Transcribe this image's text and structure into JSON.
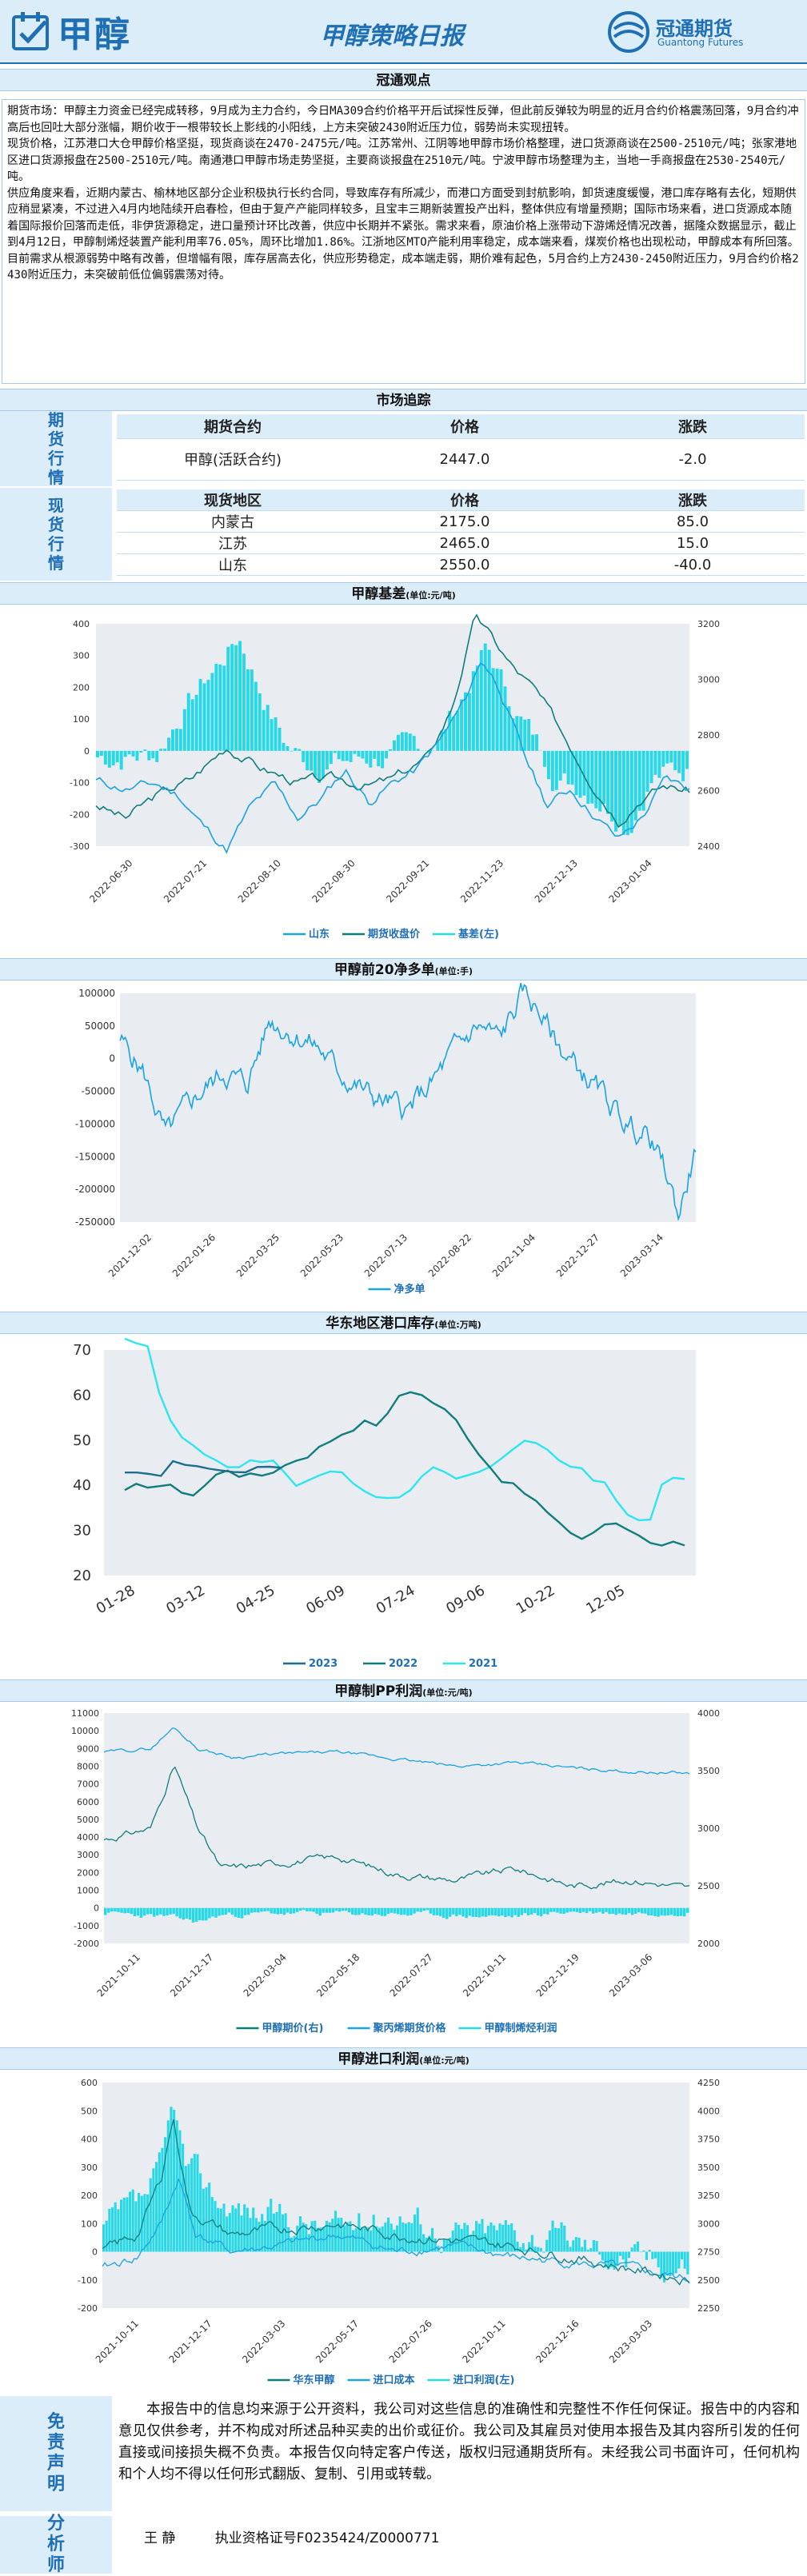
{
  "header": {
    "logo_text": "甲醇",
    "title": "甲醇策略日报",
    "brand_cn": "冠通期货",
    "brand_en": "Guantong Futures"
  },
  "viewpoint": {
    "title": "冠通观点",
    "paragraphs": [
      "期货市场：甲醇主力资金已经完成转移，9月成为主力合约，今日MA309合约价格平开后试探性反弹，但此前反弹较为明显的近月合约价格震荡回落，9月合约冲高后也回吐大部分涨幅，期价收于一根带较长上影线的小阳线，上方未突破2430附近压力位，弱势尚未实现扭转。",
      "现货价格，江苏港口大仓甲醇价格坚挺，现货商谈在2470-2475元/吨。江苏常州、江阴等地甲醇市场价格整理，进口货源商谈在2500-2510元/吨；张家港地区进口货源报盘在2500-2510元/吨。南通港口甲醇市场走势坚挺，主要商谈报盘在2510元/吨。宁波甲醇市场整理为主，当地一手商报盘在2530-2540元/吨。",
      "供应角度来看，近期内蒙古、榆林地区部分企业积极执行长约合同，导致库存有所减少，而港口方面受到封航影响，卸货速度缓慢，港口库存略有去化，短期供应稍显紧凑，不过进入4月内地陆续开启春检，但由于复产产能同样较多，且宝丰三期新装置投产出料，整体供应有增量预期；国际市场来看，进口货源成本随着国际报价回落而走低，非伊货源稳定，进口量预计环比改善，供应中长期并不紧张。需求来看，原油价格上涨带动下游烯烃情况改善，据隆众数据显示，截止到4月12日，甲醇制烯烃装置产能利用率76.05%，周环比增加1.86%。江浙地区MTO产能利用率稳定，成本端来看，煤炭价格也出现松动，甲醇成本有所回落。目前需求从根源弱势中略有改善，但增幅有限，库存居高去化，供应形势稳定，成本端走弱，期价难有起色，5月合约上方2430-2450附近压力，9月合约价格2430附近压力，未突破前低位偏弱震荡对待。"
    ]
  },
  "market": {
    "title": "市场追踪",
    "futures_label": "期货行情",
    "futures_headers": [
      "期货合约",
      "价格",
      "涨跌"
    ],
    "futures_rows": [
      [
        "甲醇(活跃合约)",
        "2447.0",
        "-2.0"
      ]
    ],
    "spot_label": "现货行情",
    "spot_headers": [
      "现货地区",
      "价格",
      "涨跌"
    ],
    "spot_rows": [
      [
        "内蒙古",
        "2175.0",
        "85.0"
      ],
      [
        "江苏",
        "2465.0",
        "15.0"
      ],
      [
        "山东",
        "2550.0",
        "-40.0"
      ]
    ]
  },
  "chart_titles": {
    "c1": {
      "title": "甲醇基差",
      "unit": "(单位:元/吨)"
    },
    "c2": {
      "title": "甲醇前20净多单",
      "unit": "(单位:手)"
    },
    "c3": {
      "title": "华东地区港口库存",
      "unit": "(单位:万吨)"
    },
    "c4": {
      "title": "甲醇制PP利润",
      "unit": "(单位:元/吨)"
    },
    "c5": {
      "title": "甲醇进口利润",
      "unit": "(单位:元/吨)"
    }
  },
  "chart_data": [
    {
      "type": "line",
      "title": "甲醇基差",
      "x": [
        "2022-06-30",
        "2022-07-21",
        "2022-08-10",
        "2022-08-30",
        "2022-09-21",
        "2022-11-23",
        "2022-12-13",
        "2023-01-04"
      ],
      "y_left_ticks": [
        "400",
        "300",
        "200",
        "100",
        "0",
        "-100",
        "-200",
        "-300"
      ],
      "y_right_ticks": [
        "3200",
        "3000",
        "2800",
        "2600",
        "2400"
      ],
      "ylim_left": [
        -300,
        400
      ],
      "ylim_right": [
        2400,
        3200
      ],
      "series": [
        {
          "name": "山东",
          "color": "#1aa3e0",
          "axis": "left",
          "shape": [
            [
              0,
              -95
            ],
            [
              0.05,
              -120
            ],
            [
              0.1,
              -105
            ],
            [
              0.14,
              -140
            ],
            [
              0.18,
              -235
            ],
            [
              0.22,
              -310
            ],
            [
              0.26,
              -180
            ],
            [
              0.3,
              -110
            ],
            [
              0.34,
              -210
            ],
            [
              0.38,
              -150
            ],
            [
              0.42,
              -60
            ],
            [
              0.46,
              -160
            ],
            [
              0.5,
              -100
            ],
            [
              0.54,
              -60
            ],
            [
              0.58,
              30
            ],
            [
              0.62,
              150
            ],
            [
              0.65,
              290
            ],
            [
              0.68,
              200
            ],
            [
              0.72,
              -10
            ],
            [
              0.76,
              -170
            ],
            [
              0.8,
              -120
            ],
            [
              0.84,
              -200
            ],
            [
              0.88,
              -280
            ],
            [
              0.92,
              -210
            ],
            [
              0.96,
              -90
            ],
            [
              1,
              -120
            ]
          ]
        },
        {
          "name": "期货收盘价",
          "color": "#117e7e",
          "axis": "right",
          "shape": [
            [
              0,
              2550
            ],
            [
              0.05,
              2500
            ],
            [
              0.1,
              2580
            ],
            [
              0.16,
              2640
            ],
            [
              0.22,
              2760
            ],
            [
              0.28,
              2680
            ],
            [
              0.34,
              2630
            ],
            [
              0.4,
              2640
            ],
            [
              0.46,
              2620
            ],
            [
              0.5,
              2640
            ],
            [
              0.56,
              2720
            ],
            [
              0.6,
              2900
            ],
            [
              0.64,
              3230
            ],
            [
              0.7,
              3050
            ],
            [
              0.74,
              2960
            ],
            [
              0.8,
              2760
            ],
            [
              0.84,
              2620
            ],
            [
              0.88,
              2500
            ],
            [
              0.92,
              2580
            ],
            [
              0.96,
              2620
            ],
            [
              1,
              2600
            ]
          ]
        },
        {
          "name": "基差(左)",
          "color": "#27d8e6",
          "axis": "left",
          "type": "bar"
        }
      ],
      "legend": [
        "山东",
        "期货收盘价",
        "基差(左)"
      ]
    },
    {
      "type": "line",
      "title": "甲醇前20净多单",
      "x": [
        "2021-12-02",
        "2022-01-26",
        "2022-03-25",
        "2022-05-23",
        "2022-07-13",
        "2022-08-22",
        "2022-11-04",
        "2022-12-27",
        "2023-03-14"
      ],
      "y_ticks": [
        "100000",
        "50000",
        "0",
        "-50000",
        "-100000",
        "-150000",
        "-200000",
        "-250000"
      ],
      "ylim": [
        -250000,
        100000
      ],
      "series": [
        {
          "name": "净多单",
          "color": "#1aa3e0"
        }
      ],
      "legend": [
        "净多单"
      ]
    },
    {
      "type": "line",
      "title": "华东地区港口库存",
      "x": [
        "01-28",
        "03-12",
        "04-25",
        "06-09",
        "07-24",
        "09-06",
        "10-22",
        "12-05"
      ],
      "y_ticks": [
        "70",
        "60",
        "50",
        "40",
        "30",
        "20"
      ],
      "ylim": [
        20,
        70
      ],
      "series": [
        {
          "name": "2023",
          "color": "#1e6f8f"
        },
        {
          "name": "2022",
          "color": "#117e7e"
        },
        {
          "name": "2021",
          "color": "#2ee5f0"
        }
      ],
      "legend": [
        "2023",
        "2022",
        "2021"
      ]
    },
    {
      "type": "line",
      "title": "甲醇制PP利润",
      "x": [
        "2021-10-11",
        "2021-12-17",
        "2022-03-04",
        "2022-05-18",
        "2022-07-27",
        "2022-10-11",
        "2022-12-19",
        "2023-03-06"
      ],
      "y_left_ticks": [
        "11000",
        "10000",
        "9000",
        "8000",
        "7000",
        "6000",
        "5000",
        "4000",
        "3000",
        "2000",
        "1000",
        "0",
        "-1000",
        "-2000"
      ],
      "y_right_ticks": [
        "4000",
        "3500",
        "3000",
        "2500",
        "2000"
      ],
      "ylim_left": [
        -2000,
        11000
      ],
      "ylim_right": [
        2000,
        4000
      ],
      "series": [
        {
          "name": "甲醇期价(右)",
          "color": "#117e7e"
        },
        {
          "name": "聚丙烯期货价格",
          "color": "#1aa3e0"
        },
        {
          "name": "甲醇制烯烃利润",
          "color": "#27d8e6",
          "type": "bar"
        }
      ],
      "legend": [
        "甲醇期价(右)",
        "聚丙烯期货价格",
        "甲醇制烯烃利润"
      ]
    },
    {
      "type": "line",
      "title": "甲醇进口利润",
      "x": [
        "2021-10-11",
        "2021-12-17",
        "2022-03-03",
        "2022-05-17",
        "2022-07-26",
        "2022-10-11",
        "2022-12-16",
        "2023-03-03"
      ],
      "y_left_ticks": [
        "600",
        "500",
        "400",
        "300",
        "200",
        "100",
        "0",
        "-100",
        "-200"
      ],
      "y_right_ticks": [
        "4250",
        "4000",
        "3750",
        "3500",
        "3250",
        "3000",
        "2750",
        "2500",
        "2250"
      ],
      "ylim_left": [
        -200,
        600
      ],
      "ylim_right": [
        2250,
        4250
      ],
      "series": [
        {
          "name": "华东甲醇",
          "color": "#117e7e"
        },
        {
          "name": "进口成本",
          "color": "#1aa3e0"
        },
        {
          "name": "进口利润(左)",
          "color": "#27d8e6",
          "type": "bar"
        }
      ],
      "legend": [
        "华东甲醇",
        "进口成本",
        "进口利润(左)"
      ]
    }
  ],
  "disclaimer": {
    "label": "免责声明",
    "text": "本报告中的信息均来源于公开资料，我公司对这些信息的准确性和完整性不作任何保证。报告中的内容和意见仅供参考，并不构成对所述品种买卖的出价或征价。我公司及其雇员对使用本报告及其内容所引发的任何直接或间接损失概不负责。本报告仅向特定客户传送，版权归冠通期货所有。未经我公司书面许可，任何机构和个人均不得以任何形式翻版、复制、引用或转载。"
  },
  "analyst": {
    "label": "分析师",
    "name": "王 静",
    "cert": "执业资格证号F0235424/Z0000771"
  },
  "colors": {
    "brand": "#1f6fb5",
    "panel": "#dcedfa",
    "plot_bg": "#e9ecf1"
  }
}
